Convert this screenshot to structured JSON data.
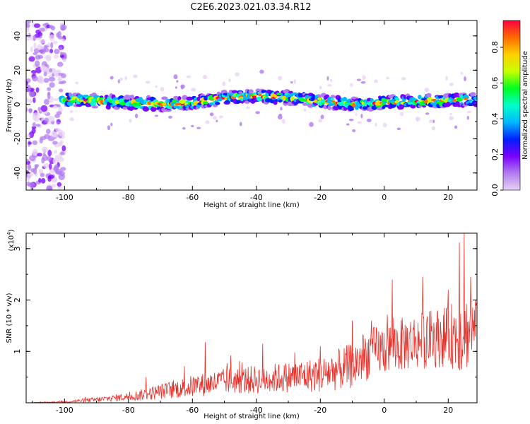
{
  "title": "C2E6.2023.021.03.34.R12",
  "colors": {
    "line": "#e8302a",
    "spectrogram_bg": "#ffffff",
    "noise": "#b27cf0",
    "colormap": [
      "#e8d2f5",
      "#b27cf0",
      "#7a00ff",
      "#0020ff",
      "#00b8ff",
      "#00ffc8",
      "#00ff20",
      "#c8ff00",
      "#ffd000",
      "#ff6a00",
      "#ff0040"
    ]
  },
  "chart_data": [
    {
      "type": "heatmap",
      "xlabel": "Height of straight line (km)",
      "ylabel": "Frequency (Hz)",
      "xlim": [
        -112,
        29
      ],
      "ylim": [
        -50,
        49
      ],
      "xticks": [
        -100,
        -80,
        -60,
        -40,
        -20,
        0,
        20
      ],
      "yticks": [
        -40,
        -20,
        0,
        20,
        40
      ],
      "colorbar": {
        "label": "Normalized spectral amplitude",
        "range": [
          0.0,
          0.95
        ],
        "ticks": [
          0.0,
          0.2,
          0.4,
          0.6,
          0.8
        ]
      },
      "noise_region_x": [
        -112,
        -101
      ],
      "band_center_freq": [
        {
          "x": -100,
          "y": 3
        },
        {
          "x": -90,
          "y": 2
        },
        {
          "x": -80,
          "y": 1
        },
        {
          "x": -70,
          "y": 0
        },
        {
          "x": -60,
          "y": 1
        },
        {
          "x": -50,
          "y": 4
        },
        {
          "x": -40,
          "y": 5
        },
        {
          "x": -30,
          "y": 4
        },
        {
          "x": -20,
          "y": 2
        },
        {
          "x": -10,
          "y": 0
        },
        {
          "x": 0,
          "y": 1
        },
        {
          "x": 10,
          "y": 2
        },
        {
          "x": 20,
          "y": 2
        },
        {
          "x": 28,
          "y": 3
        }
      ],
      "band_halfwidth_hz": 4
    },
    {
      "type": "line",
      "xlabel": "Height of straight line (km)",
      "ylabel": "SNR (10 * v/v)",
      "yscale_label": "(x10",
      "yscale_exp": "4",
      "yscale_suffix": ")",
      "xlim": [
        -112,
        29
      ],
      "ylim": [
        0,
        3.3
      ],
      "xticks": [
        -100,
        -80,
        -60,
        -40,
        -20,
        0,
        20
      ],
      "yticks": [
        1,
        2,
        3
      ],
      "series": [
        {
          "envelope_x": [
            -112,
            -100,
            -90,
            -80,
            -75,
            -70,
            -60,
            -50,
            -40,
            -30,
            -20,
            -10,
            -5,
            0,
            10,
            20,
            25,
            29
          ],
          "envelope_mean": [
            0.0,
            0.02,
            0.06,
            0.12,
            0.16,
            0.22,
            0.32,
            0.42,
            0.45,
            0.5,
            0.55,
            0.72,
            0.95,
            1.05,
            1.2,
            1.3,
            1.35,
            1.45
          ],
          "envelope_spread": [
            0.0,
            0.02,
            0.05,
            0.08,
            0.12,
            0.15,
            0.22,
            0.25,
            0.28,
            0.3,
            0.35,
            0.45,
            0.5,
            0.5,
            0.55,
            0.6,
            0.8,
            0.5
          ],
          "peaks": [
            {
              "x": -74.5,
              "y": 0.5
            },
            {
              "x": -56,
              "y": 1.18
            },
            {
              "x": -48,
              "y": 0.92
            },
            {
              "x": -38,
              "y": 1.15
            },
            {
              "x": -28,
              "y": 0.98
            },
            {
              "x": -20,
              "y": 1.1
            },
            {
              "x": -10,
              "y": 1.6
            },
            {
              "x": -4,
              "y": 1.6
            },
            {
              "x": 2.5,
              "y": 2.4
            },
            {
              "x": 12,
              "y": 2.45
            },
            {
              "x": 20,
              "y": 2.2
            },
            {
              "x": 23.5,
              "y": 3.12
            },
            {
              "x": 25,
              "y": 3.3
            },
            {
              "x": 27,
              "y": 2.45
            },
            {
              "x": 28.5,
              "y": 2.0
            }
          ]
        }
      ]
    }
  ]
}
